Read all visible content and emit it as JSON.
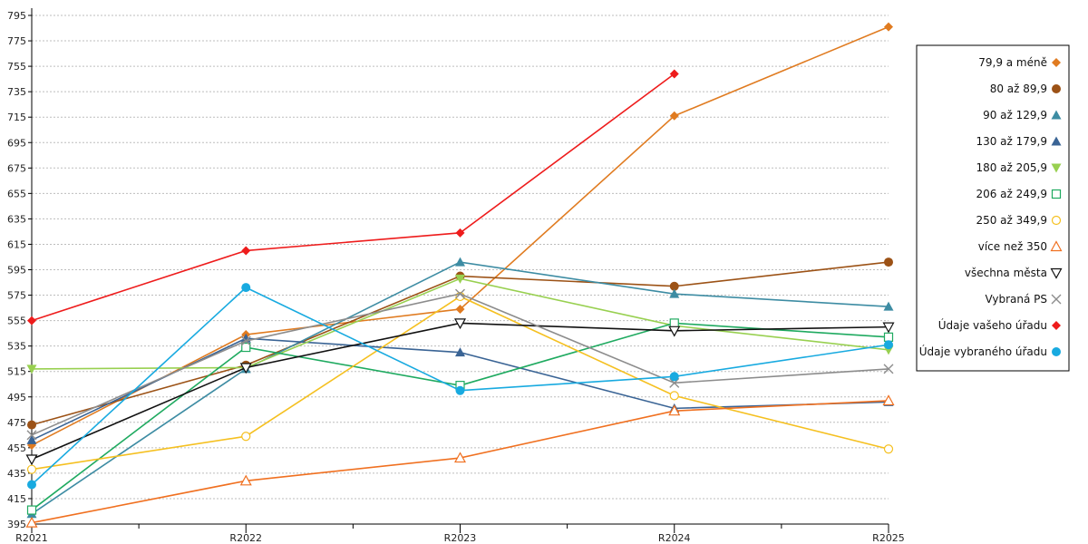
{
  "chart_data": {
    "type": "line",
    "title": "",
    "xlabel": "",
    "ylabel": "",
    "categories": [
      "R2021",
      "R2022",
      "R2023",
      "R2024",
      "R2025"
    ],
    "ylim": [
      395,
      795
    ],
    "yticks": [
      395,
      415,
      435,
      455,
      475,
      495,
      515,
      535,
      555,
      575,
      595,
      615,
      635,
      655,
      675,
      695,
      715,
      735,
      755,
      775,
      795
    ],
    "grid": true,
    "legend_position": "right",
    "series": [
      {
        "name": "79,9 a méně",
        "color": "#e07b20",
        "marker": "diamond",
        "values": [
          457,
          544,
          564,
          716,
          786
        ]
      },
      {
        "name": "80 až 89,9",
        "color": "#9c5216",
        "marker": "circle",
        "values": [
          473,
          520,
          590,
          582,
          601
        ]
      },
      {
        "name": "90 až 129,9",
        "color": "#3d8ca3",
        "marker": "triangle-up",
        "values": [
          403,
          517,
          601,
          576,
          566
        ]
      },
      {
        "name": "130 až 179,9",
        "color": "#3a6495",
        "marker": "triangle-up",
        "values": [
          461,
          541,
          530,
          486,
          491
        ]
      },
      {
        "name": "180 až 205,9",
        "color": "#98d050",
        "marker": "triangle-down",
        "values": [
          517,
          518,
          588,
          551,
          532
        ]
      },
      {
        "name": "206 až 249,9",
        "color": "#1faa60",
        "marker": "square-open",
        "values": [
          406,
          534,
          504,
          553,
          542
        ]
      },
      {
        "name": "250 až 349,9",
        "color": "#f5c020",
        "marker": "circle-open",
        "values": [
          438,
          464,
          574,
          496,
          454
        ]
      },
      {
        "name": "více než 350",
        "color": "#f07020",
        "marker": "triangle-up-open",
        "values": [
          396,
          429,
          447,
          484,
          492
        ]
      },
      {
        "name": "všechna města",
        "color": "#111111",
        "marker": "triangle-down-open",
        "values": [
          446,
          518,
          553,
          547,
          550
        ]
      },
      {
        "name": "Vybraná PS",
        "color": "#8c8c8c",
        "marker": "x",
        "values": [
          465,
          539,
          576,
          506,
          517
        ]
      },
      {
        "name": "Údaje vašeho úřadu",
        "color": "#ee1c1c",
        "marker": "diamond",
        "values": [
          555,
          610,
          624,
          749,
          null
        ]
      },
      {
        "name": "Údaje vybraného úřadu",
        "color": "#18aae0",
        "marker": "circle",
        "values": [
          426,
          581,
          500,
          511,
          536
        ]
      }
    ]
  }
}
